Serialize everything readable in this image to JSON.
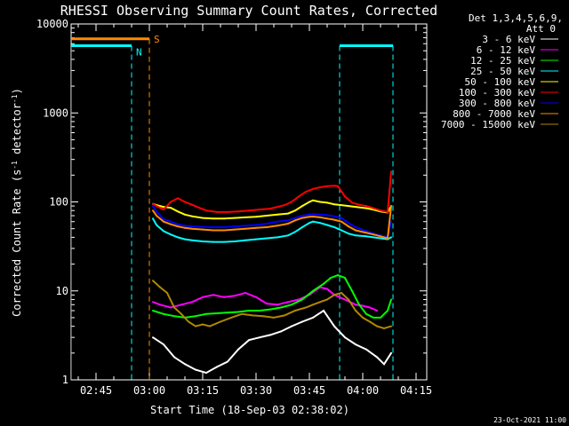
{
  "chart_data": {
    "type": "line",
    "title": "RHESSI Observing Summary Count Rates, Corrected",
    "xlabel": "Start Time (18-Sep-03 02:38:02)",
    "ylabel_main": "Corrected Count Rate (s",
    "ylabel_sup1": "-1",
    "ylabel_mid": " detector",
    "ylabel_sup2": "-1",
    "ylabel_end": ")",
    "x_units": "minutes after 02:38",
    "x_range": [
      0,
      100
    ],
    "y_scale": "log",
    "y_range": [
      1,
      10000
    ],
    "x_ticks": [
      {
        "value": 7,
        "label": "02:45"
      },
      {
        "value": 22,
        "label": "03:00"
      },
      {
        "value": 37,
        "label": "03:15"
      },
      {
        "value": 52,
        "label": "03:30"
      },
      {
        "value": 67,
        "label": "03:45"
      },
      {
        "value": 82,
        "label": "04:00"
      },
      {
        "value": 97,
        "label": "04:15"
      }
    ],
    "y_ticks": [
      {
        "value": 1,
        "label": "1"
      },
      {
        "value": 10,
        "label": "10"
      },
      {
        "value": 100,
        "label": "100"
      },
      {
        "value": 1000,
        "label": "1000"
      },
      {
        "value": 10000,
        "label": "10000"
      }
    ],
    "legend_header_1": "Det 1,3,4,5,6,9,",
    "legend_header_2": "Att 0",
    "footer_date": "23-Oct-2021 11:00",
    "markers": [
      {
        "type": "night",
        "label": "N",
        "y": 5700,
        "segments": [
          [
            0,
            17
          ],
          [
            75.5,
            90.5
          ]
        ],
        "lines": [
          0,
          17,
          75.5,
          90.5
        ],
        "color": "#00ffff"
      },
      {
        "type": "saa",
        "label": "S",
        "y": 6800,
        "segments": [
          [
            0,
            22
          ]
        ],
        "lines": [
          22
        ],
        "color": "#ff8c00"
      }
    ],
    "series": [
      {
        "name": "3 - 6 keV",
        "color": "#ffffff",
        "points": [
          [
            23,
            3
          ],
          [
            26,
            2.5
          ],
          [
            29,
            1.8
          ],
          [
            32,
            1.5
          ],
          [
            35,
            1.3
          ],
          [
            38,
            1.2
          ],
          [
            41,
            1.4
          ],
          [
            44,
            1.6
          ],
          [
            47,
            2.2
          ],
          [
            50,
            2.8
          ],
          [
            53,
            3
          ],
          [
            56,
            3.2
          ],
          [
            59,
            3.5
          ],
          [
            62,
            4
          ],
          [
            65,
            4.5
          ],
          [
            68,
            5
          ],
          [
            71,
            6
          ],
          [
            74,
            4
          ],
          [
            77,
            3
          ],
          [
            80,
            2.5
          ],
          [
            83,
            2.2
          ],
          [
            86,
            1.8
          ],
          [
            88,
            1.5
          ],
          [
            90,
            2
          ]
        ]
      },
      {
        "name": "6 - 12 keV",
        "color": "#ff00ff",
        "points": [
          [
            23,
            7.5
          ],
          [
            25,
            7
          ],
          [
            28,
            6.5
          ],
          [
            31,
            7
          ],
          [
            34,
            7.5
          ],
          [
            37,
            8.5
          ],
          [
            40,
            9
          ],
          [
            43,
            8.5
          ],
          [
            46,
            8.8
          ],
          [
            49,
            9.5
          ],
          [
            52,
            8.5
          ],
          [
            55,
            7.2
          ],
          [
            58,
            7
          ],
          [
            61,
            7.5
          ],
          [
            64,
            8
          ],
          [
            67,
            9
          ],
          [
            70,
            11
          ],
          [
            72,
            10.5
          ],
          [
            74,
            9
          ],
          [
            77,
            8
          ],
          [
            80,
            7
          ],
          [
            82,
            6.8
          ],
          [
            84,
            6.5
          ],
          [
            86,
            6
          ]
        ]
      },
      {
        "name": "12 - 25 keV",
        "color": "#00ff00",
        "points": [
          [
            23,
            6
          ],
          [
            26,
            5.5
          ],
          [
            29,
            5.2
          ],
          [
            32,
            5
          ],
          [
            35,
            5.2
          ],
          [
            38,
            5.5
          ],
          [
            41,
            5.6
          ],
          [
            44,
            5.7
          ],
          [
            47,
            5.8
          ],
          [
            50,
            6
          ],
          [
            53,
            6
          ],
          [
            56,
            6.2
          ],
          [
            59,
            6.5
          ],
          [
            62,
            7
          ],
          [
            65,
            8
          ],
          [
            68,
            10
          ],
          [
            71,
            12
          ],
          [
            73,
            14
          ],
          [
            75,
            15
          ],
          [
            77,
            14
          ],
          [
            79,
            10
          ],
          [
            81,
            7
          ],
          [
            83,
            5.5
          ],
          [
            85,
            5
          ],
          [
            87,
            5
          ],
          [
            89,
            6
          ],
          [
            90,
            8
          ]
        ]
      },
      {
        "name": "25 - 50 keV",
        "color": "#00ffff",
        "points": [
          [
            23,
            65
          ],
          [
            24,
            55
          ],
          [
            26,
            47
          ],
          [
            28,
            43
          ],
          [
            30,
            40
          ],
          [
            32,
            38
          ],
          [
            34,
            37
          ],
          [
            37,
            36
          ],
          [
            40,
            35.5
          ],
          [
            43,
            35.5
          ],
          [
            46,
            36
          ],
          [
            49,
            37
          ],
          [
            52,
            38
          ],
          [
            55,
            39
          ],
          [
            58,
            40
          ],
          [
            61,
            42
          ],
          [
            63,
            46
          ],
          [
            65,
            52
          ],
          [
            67,
            58
          ],
          [
            68,
            60
          ],
          [
            70,
            58
          ],
          [
            72,
            55
          ],
          [
            74,
            52
          ],
          [
            76,
            48
          ],
          [
            78,
            44
          ],
          [
            80,
            42
          ],
          [
            83,
            41
          ],
          [
            85,
            40
          ],
          [
            87,
            39
          ],
          [
            89,
            38
          ],
          [
            90,
            40
          ]
        ]
      },
      {
        "name": "50 - 100 keV",
        "color": "#ffff00",
        "points": [
          [
            23,
            95
          ],
          [
            24,
            92
          ],
          [
            26,
            88
          ],
          [
            28,
            86
          ],
          [
            30,
            78
          ],
          [
            32,
            72
          ],
          [
            34,
            69
          ],
          [
            37,
            66
          ],
          [
            40,
            65
          ],
          [
            43,
            65
          ],
          [
            46,
            66
          ],
          [
            49,
            67
          ],
          [
            52,
            68
          ],
          [
            55,
            70
          ],
          [
            58,
            72
          ],
          [
            61,
            74
          ],
          [
            63,
            80
          ],
          [
            65,
            90
          ],
          [
            67,
            100
          ],
          [
            68,
            104
          ],
          [
            70,
            100
          ],
          [
            72,
            98
          ],
          [
            74,
            94
          ],
          [
            76,
            92
          ],
          [
            78,
            90
          ],
          [
            80,
            88
          ],
          [
            83,
            85
          ],
          [
            85,
            82
          ],
          [
            87,
            78
          ],
          [
            89,
            76
          ],
          [
            90,
            90
          ]
        ]
      },
      {
        "name": "100 - 300 keV",
        "color": "#ff0000",
        "points": [
          [
            23,
            95
          ],
          [
            24,
            90
          ],
          [
            26,
            82
          ],
          [
            28,
            100
          ],
          [
            30,
            110
          ],
          [
            32,
            100
          ],
          [
            34,
            93
          ],
          [
            36,
            86
          ],
          [
            38,
            80
          ],
          [
            41,
            77
          ],
          [
            44,
            77
          ],
          [
            47,
            78
          ],
          [
            50,
            80
          ],
          [
            53,
            82
          ],
          [
            56,
            84
          ],
          [
            58,
            88
          ],
          [
            60,
            92
          ],
          [
            62,
            100
          ],
          [
            64,
            115
          ],
          [
            66,
            130
          ],
          [
            68,
            140
          ],
          [
            70,
            146
          ],
          [
            72,
            150
          ],
          [
            74,
            152
          ],
          [
            75,
            150
          ],
          [
            77,
            115
          ],
          [
            79,
            98
          ],
          [
            81,
            93
          ],
          [
            83,
            90
          ],
          [
            85,
            85
          ],
          [
            87,
            80
          ],
          [
            89,
            77
          ],
          [
            90,
            220
          ]
        ]
      },
      {
        "name": "300 - 800 keV",
        "color": "#0000ff",
        "points": [
          [
            23,
            90
          ],
          [
            24,
            78
          ],
          [
            26,
            64
          ],
          [
            28,
            60
          ],
          [
            30,
            56
          ],
          [
            32,
            54
          ],
          [
            34,
            53
          ],
          [
            37,
            52.5
          ],
          [
            40,
            52
          ],
          [
            43,
            52
          ],
          [
            46,
            53
          ],
          [
            49,
            54
          ],
          [
            52,
            55
          ],
          [
            55,
            57
          ],
          [
            58,
            60
          ],
          [
            61,
            62
          ],
          [
            63,
            66
          ],
          [
            65,
            70
          ],
          [
            67,
            72
          ],
          [
            68,
            73
          ],
          [
            70,
            72
          ],
          [
            72,
            71
          ],
          [
            74,
            69
          ],
          [
            76,
            66
          ],
          [
            78,
            58
          ],
          [
            80,
            52
          ],
          [
            83,
            47
          ],
          [
            85,
            44
          ],
          [
            87,
            42
          ],
          [
            89,
            40
          ],
          [
            90,
            60
          ]
        ]
      },
      {
        "name": "800 - 7000 keV",
        "color": "#ff8c00",
        "points": [
          [
            23,
            80
          ],
          [
            24,
            70
          ],
          [
            26,
            60
          ],
          [
            28,
            56
          ],
          [
            30,
            53
          ],
          [
            32,
            51
          ],
          [
            34,
            50
          ],
          [
            37,
            49
          ],
          [
            40,
            48
          ],
          [
            43,
            48
          ],
          [
            46,
            49
          ],
          [
            49,
            50
          ],
          [
            52,
            51
          ],
          [
            55,
            52
          ],
          [
            58,
            54
          ],
          [
            61,
            57
          ],
          [
            63,
            62
          ],
          [
            65,
            66
          ],
          [
            67,
            68
          ],
          [
            68,
            68.5
          ],
          [
            70,
            67
          ],
          [
            72,
            65
          ],
          [
            74,
            63
          ],
          [
            76,
            60
          ],
          [
            78,
            53
          ],
          [
            80,
            48
          ],
          [
            83,
            45
          ],
          [
            85,
            43
          ],
          [
            87,
            41
          ],
          [
            89,
            39
          ],
          [
            90,
            90
          ]
        ]
      },
      {
        "name": "7000 - 15000 keV",
        "color": "#b08800",
        "points": [
          [
            23,
            13
          ],
          [
            25,
            11
          ],
          [
            27,
            9.5
          ],
          [
            29,
            6.5
          ],
          [
            31,
            5.5
          ],
          [
            33,
            4.5
          ],
          [
            35,
            4
          ],
          [
            37,
            4.2
          ],
          [
            39,
            4
          ],
          [
            42,
            4.5
          ],
          [
            45,
            5
          ],
          [
            48,
            5.5
          ],
          [
            51,
            5.3
          ],
          [
            54,
            5.2
          ],
          [
            57,
            5
          ],
          [
            60,
            5.3
          ],
          [
            63,
            6
          ],
          [
            66,
            6.5
          ],
          [
            68,
            7
          ],
          [
            70,
            7.5
          ],
          [
            72,
            8
          ],
          [
            74,
            9
          ],
          [
            76,
            9.5
          ],
          [
            78,
            8
          ],
          [
            80,
            6
          ],
          [
            82,
            5
          ],
          [
            84,
            4.5
          ],
          [
            86,
            4
          ],
          [
            88,
            3.8
          ],
          [
            90,
            4
          ]
        ]
      }
    ]
  }
}
